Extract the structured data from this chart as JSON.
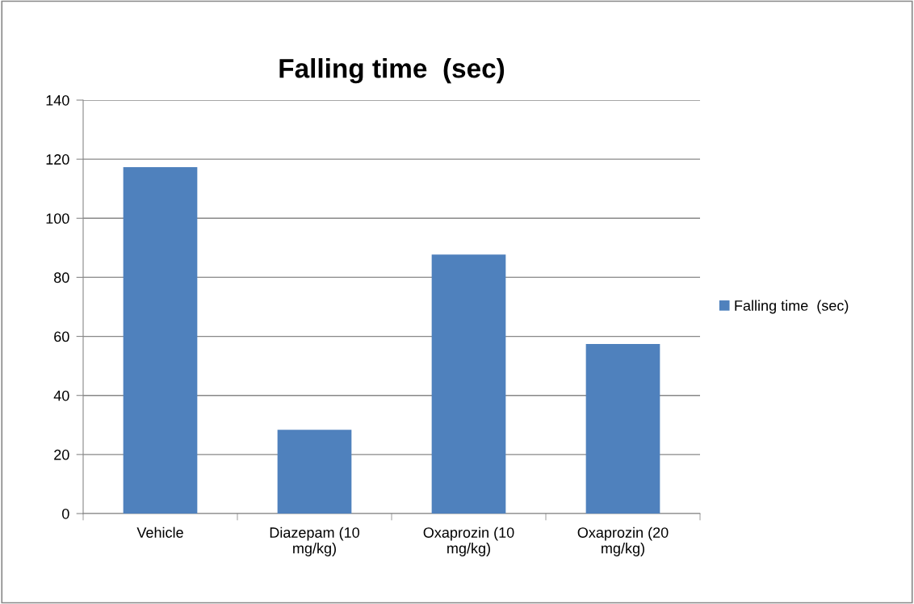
{
  "chart_data": {
    "type": "bar",
    "title": "Falling time  (sec)",
    "categories": [
      "Vehicle",
      "Diazepam (10\nmg/kg)",
      "Oxaprozin (10\nmg/kg)",
      "Oxaprozin (20\nmg/kg)"
    ],
    "series": [
      {
        "name": "Falling time  (sec)",
        "color": "#4f81bd",
        "values": [
          117.3,
          28.4,
          87.7,
          57.4
        ]
      }
    ],
    "ylim": [
      0,
      140
    ],
    "yticks": [
      0,
      20,
      40,
      60,
      80,
      100,
      120,
      140
    ],
    "grid": "y",
    "legend": "right"
  }
}
